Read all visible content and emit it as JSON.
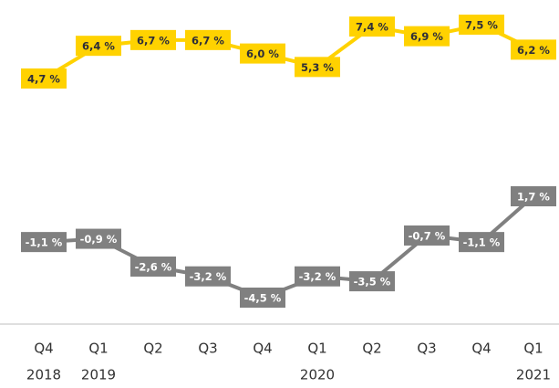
{
  "chart_data": {
    "type": "line",
    "categories": [
      "Q4",
      "Q1",
      "Q2",
      "Q3",
      "Q4",
      "Q1",
      "Q2",
      "Q3",
      "Q4",
      "Q1"
    ],
    "category_years": [
      "2018",
      "2019",
      null,
      null,
      null,
      "2020",
      null,
      null,
      null,
      "2021"
    ],
    "series": [
      {
        "color": "#ffd200",
        "label_text_color": "#2e2e38",
        "values": [
          4.7,
          6.4,
          6.7,
          6.7,
          6.0,
          5.3,
          7.4,
          6.9,
          7.5,
          6.2
        ],
        "value_labels": [
          "4,7 %",
          "6,4 %",
          "6,7 %",
          "6,7 %",
          "6,0 %",
          "5,3 %",
          "7,4 %",
          "6,9 %",
          "7,5 %",
          "6,2 %"
        ]
      },
      {
        "color": "#808080",
        "label_text_color": "#ffffff",
        "values": [
          -1.1,
          -0.9,
          -2.6,
          -3.2,
          -4.5,
          -3.2,
          -3.5,
          -0.7,
          -1.1,
          1.7
        ],
        "value_labels": [
          "-1,1 %",
          "-0,9 %",
          "-2,6 %",
          "-3,2 %",
          "-4,5 %",
          "-3,2 %",
          "-3,5 %",
          "-0,7 %",
          "-1,1 %",
          "1,7 %"
        ]
      }
    ]
  }
}
